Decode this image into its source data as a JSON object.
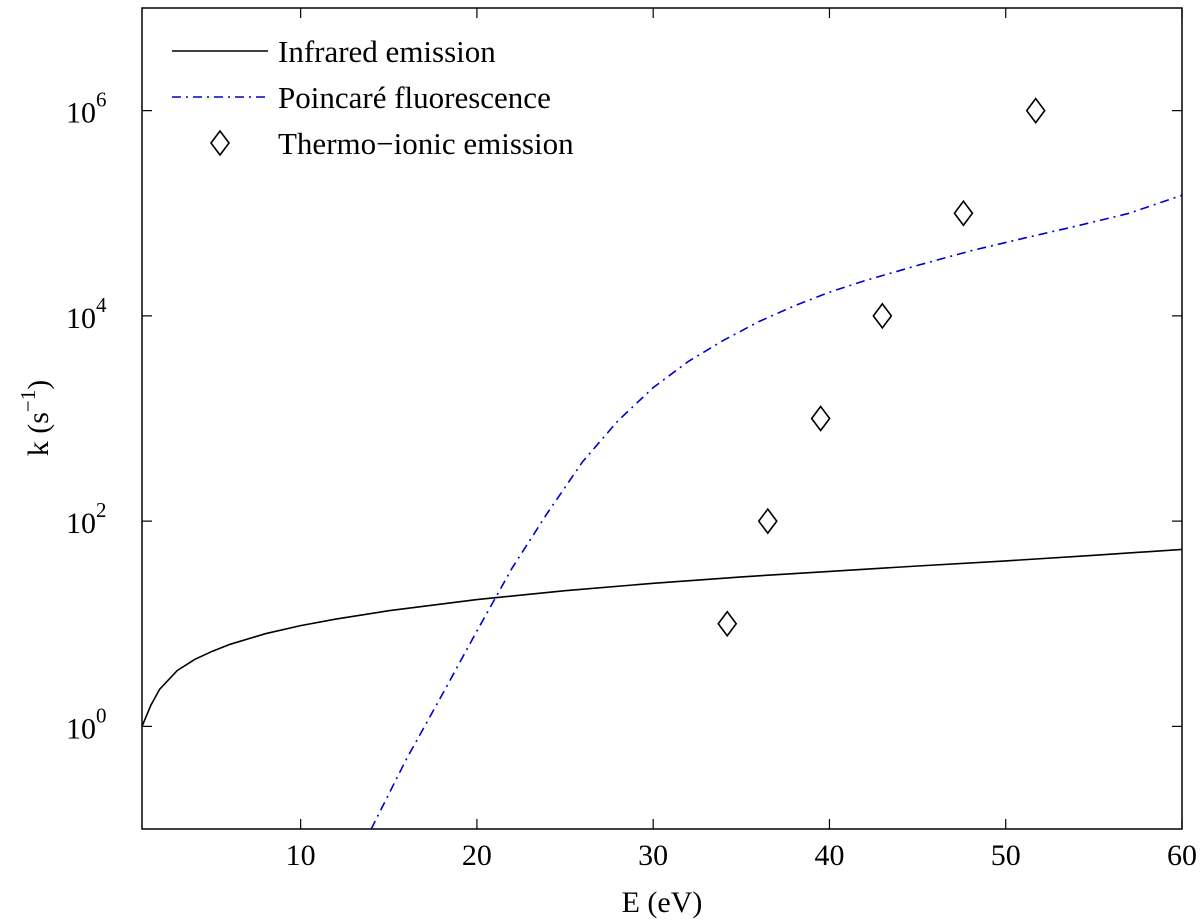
{
  "chart_data": {
    "type": "line",
    "xlabel": "E (eV)",
    "ylabel": {
      "base": "k (s",
      "sup": "−1",
      "close": ")"
    },
    "xlim": [
      1,
      60
    ],
    "ylim_log10": [
      -1,
      7
    ],
    "y_scale": "log",
    "x_ticks": [
      10,
      20,
      30,
      40,
      50,
      60
    ],
    "x_tick_labels": [
      "10",
      "20",
      "30",
      "40",
      "50",
      "60"
    ],
    "y_ticks": [
      {
        "exp": 0,
        "base": "10",
        "sup": "0"
      },
      {
        "exp": 2,
        "base": "10",
        "sup": "2"
      },
      {
        "exp": 4,
        "base": "10",
        "sup": "4"
      },
      {
        "exp": 6,
        "base": "10",
        "sup": "6"
      }
    ],
    "grid": false,
    "legend_position": "top-left",
    "series": [
      {
        "name": "Infrared emission",
        "style": "solid",
        "color": "#000000",
        "x": [
          1,
          1.5,
          2,
          3,
          4,
          5,
          6,
          8,
          10,
          12,
          15,
          20,
          25,
          30,
          35,
          40,
          45,
          50,
          55,
          60
        ],
        "y": [
          1.0,
          1.6,
          2.3,
          3.5,
          4.5,
          5.4,
          6.3,
          8.0,
          9.6,
          11.1,
          13.4,
          17.2,
          21.0,
          24.8,
          28.6,
          32.4,
          36.5,
          41.0,
          46.5,
          53.0
        ]
      },
      {
        "name": "Poincaré fluorescence",
        "style": "dashdot",
        "color": "#0000cc",
        "x": [
          14,
          16,
          18,
          20,
          22,
          24,
          26,
          28,
          30,
          32,
          34,
          36,
          38,
          40,
          42,
          45,
          48,
          51,
          54,
          57,
          60
        ],
        "y": [
          0.1,
          0.48,
          2.0,
          8.5,
          35,
          120,
          380,
          950,
          2000,
          3600,
          5800,
          8800,
          12500,
          17000,
          22000,
          31000,
          43000,
          57000,
          75000,
          100000,
          150000
        ]
      },
      {
        "name": "Thermo−ionic emission",
        "style": "markers",
        "marker": "diamond",
        "color": "#000000",
        "x": [
          34.2,
          36.5,
          39.5,
          43.0,
          47.6,
          51.7
        ],
        "y": [
          10,
          100,
          1000,
          10000,
          100000,
          1000000
        ]
      }
    ]
  }
}
